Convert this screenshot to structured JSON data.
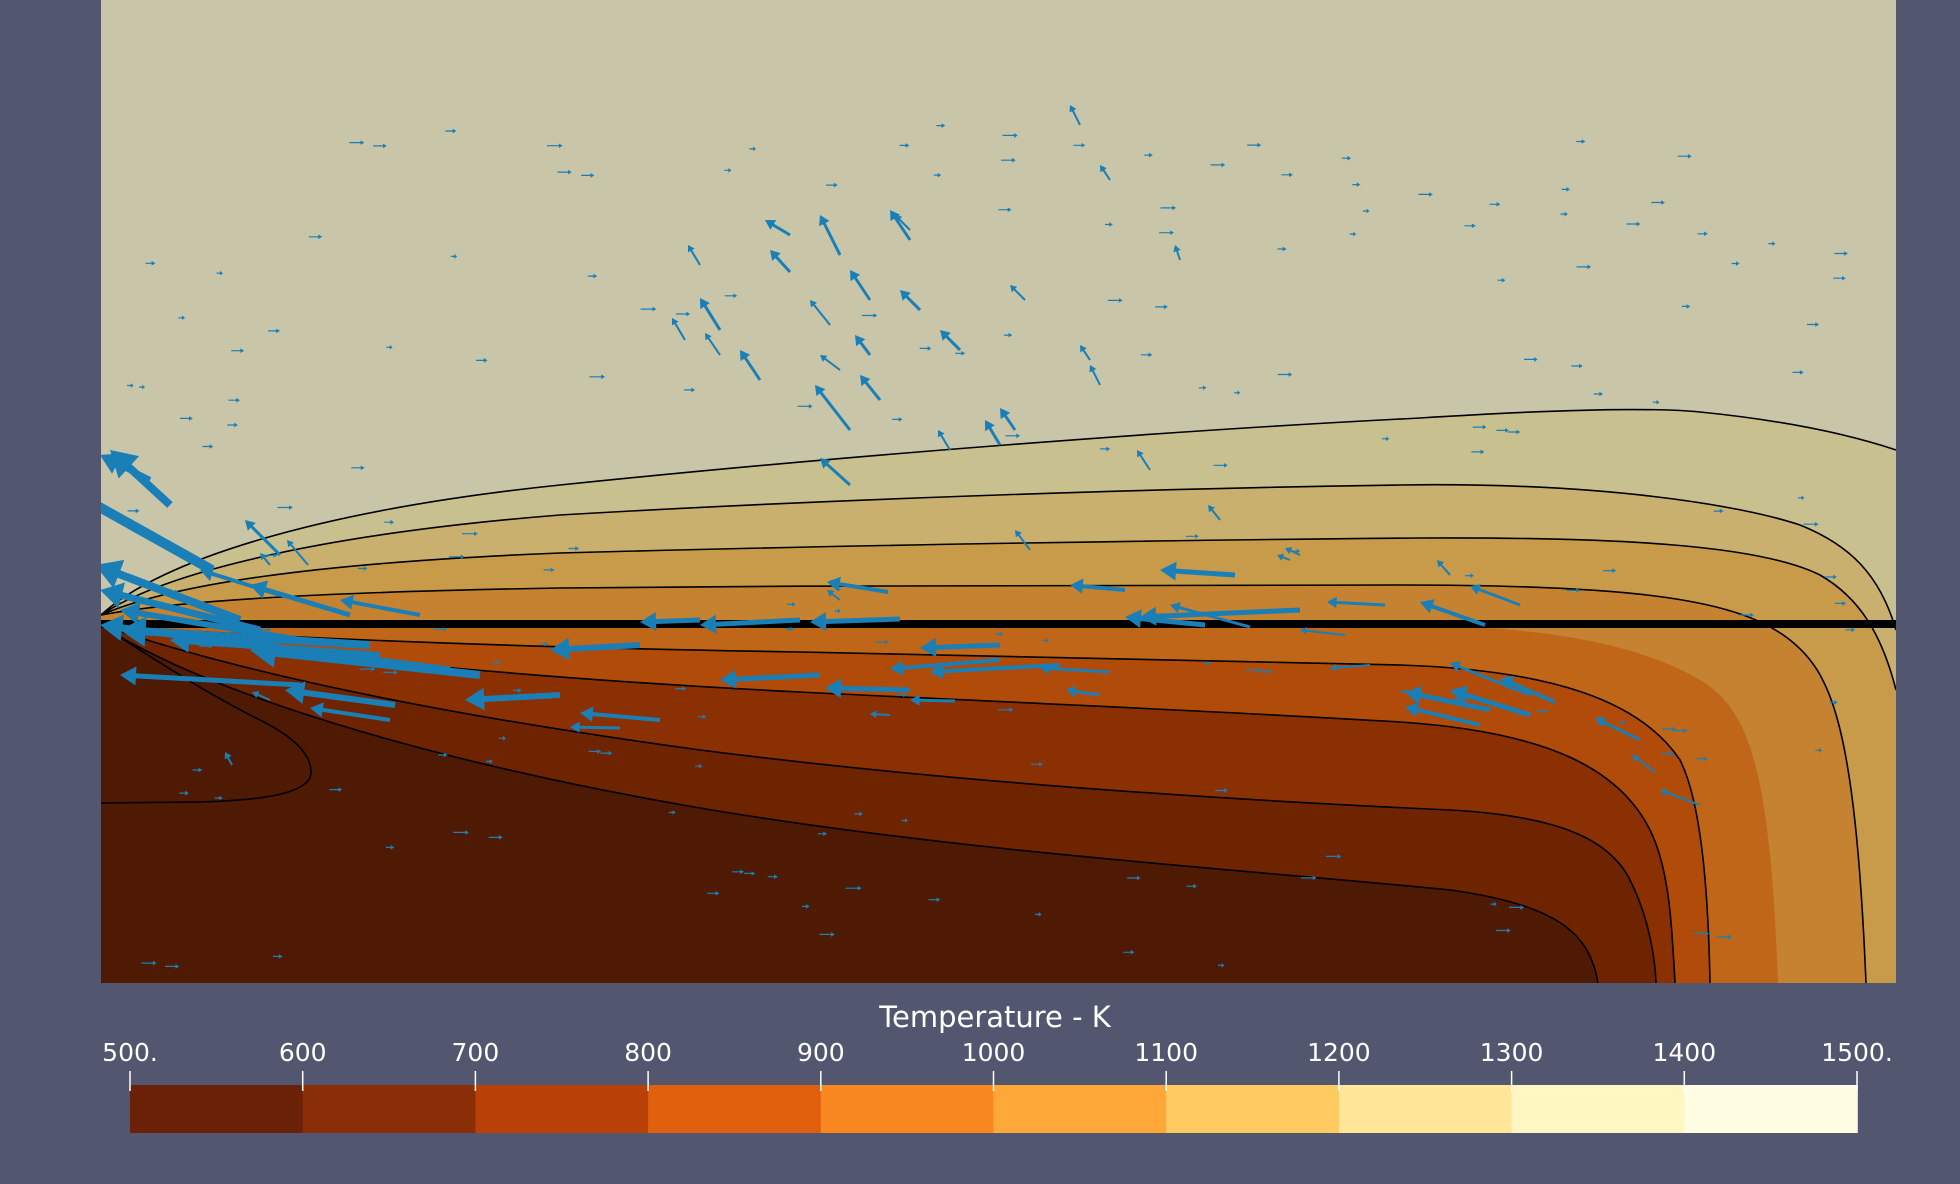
{
  "colorbar": {
    "title": "Temperature - K",
    "tick_labels": [
      "500.",
      "600",
      "700",
      "800",
      "900",
      "1000",
      "1100",
      "1200",
      "1300",
      "1400",
      "1500."
    ],
    "swatch_colors": [
      "#6b2008",
      "#8a2e08",
      "#b94006",
      "#e0600e",
      "#f7871e",
      "#fda838",
      "#ffca60",
      "#ffe698",
      "#fff6c2",
      "#fffee4"
    ]
  },
  "colors": {
    "background": "#52566e",
    "arrow": "#1a7fb7",
    "contour_line": "#000000",
    "fault_line": "#000000"
  },
  "field_bands_outer_to_inner": [
    "#c8c5a8",
    "#c9c08f",
    "#c9b06f",
    "#c79b4a",
    "#c58230",
    "#bf6618",
    "#b04b0a",
    "#8a3003",
    "#6f2401",
    "#4f1a03"
  ]
}
